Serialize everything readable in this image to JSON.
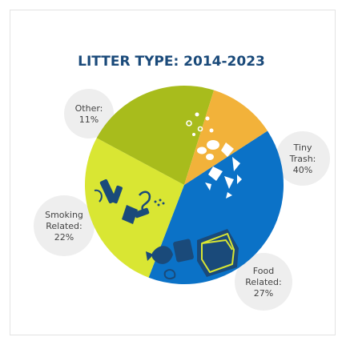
{
  "chart_data": {
    "type": "pie",
    "title": "LITTER TYPE: 2014-2023",
    "slices": [
      {
        "name": "Tiny Trash",
        "label_lines": [
          "Tiny",
          "Trash:",
          "40%"
        ],
        "value": 40,
        "color": "#0b72c7"
      },
      {
        "name": "Food Related",
        "label_lines": [
          "Food",
          "Related:",
          "27%"
        ],
        "value": 27,
        "color": "#d9e633"
      },
      {
        "name": "Smoking Related",
        "label_lines": [
          "Smoking",
          "Related:",
          "22%"
        ],
        "value": 22,
        "color": "#a8bc1c"
      },
      {
        "name": "Other",
        "label_lines": [
          "Other:",
          "11%"
        ],
        "value": 11,
        "color": "#f2b23a"
      }
    ],
    "start_angle_deg": -33,
    "direction": "clockwise",
    "label_style": "grey circular bubbles outside the pie",
    "icon_color": "#1a4a7a",
    "icons": [
      "tiny-trash-icon",
      "food-packaging-icon",
      "cigarette-icon"
    ]
  }
}
